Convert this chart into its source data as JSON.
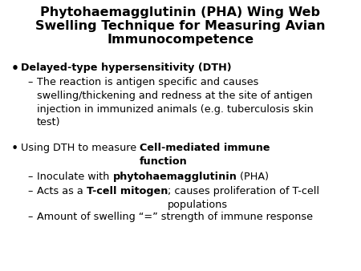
{
  "title_line1": "Phytohaemagglutinin (PHA) Wing Web",
  "title_line2": "Swelling Technique for Measuring Avian",
  "title_line3": "Immunocompetence",
  "background_color": "#ffffff",
  "text_color": "#000000",
  "title_fontsize": 11.5,
  "body_fontsize": 9.2,
  "bullet1": "Delayed-type hypersensitivity (DTH)",
  "sub1": "The reaction is antigen specific and causes\nswelling/thickening and redness at the site of antigen\ninjection in immunized animals (e.g. tuberculosis skin\ntest)",
  "bullet2_normal": "Using DTH to measure ",
  "bullet2_bold": "Cell-mediated immune\nfunction",
  "sub2_normal1": "Inoculate with ",
  "sub2_bold": "phytohaemagglutinin",
  "sub2_normal2": " (PHA)",
  "sub3_normal1": "Acts as a ",
  "sub3_bold": "T-cell mitogen",
  "sub3_normal2": "; causes proliferation of T-cell\npopulations",
  "sub4": "Amount of swelling “=” strength of immune response"
}
